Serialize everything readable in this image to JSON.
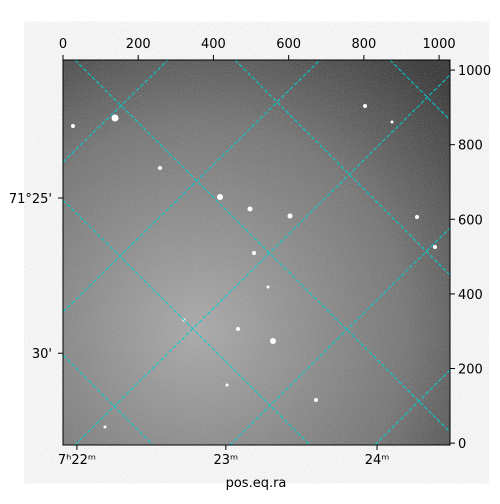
{
  "chart_data": {
    "type": "image",
    "xlabel": "pos.eq.ra",
    "xlim": [
      0,
      1029
    ],
    "ylim": [
      -5,
      1027
    ],
    "xticks": [
      0,
      200,
      400,
      600,
      800,
      1000
    ],
    "yticks": [
      0,
      200,
      400,
      600,
      800,
      1000
    ],
    "world_xticks": [
      {
        "value": 37,
        "label": "7ʰ22ᵐ"
      },
      {
        "value": 433,
        "label": "23ᵐ"
      },
      {
        "value": 835,
        "label": "24ᵐ"
      }
    ],
    "world_yticks": [
      {
        "value": 657,
        "label": "71°25'"
      },
      {
        "value": 241,
        "label": "30'"
      }
    ],
    "grid": true,
    "grid_color": "#00d0d0"
  }
}
